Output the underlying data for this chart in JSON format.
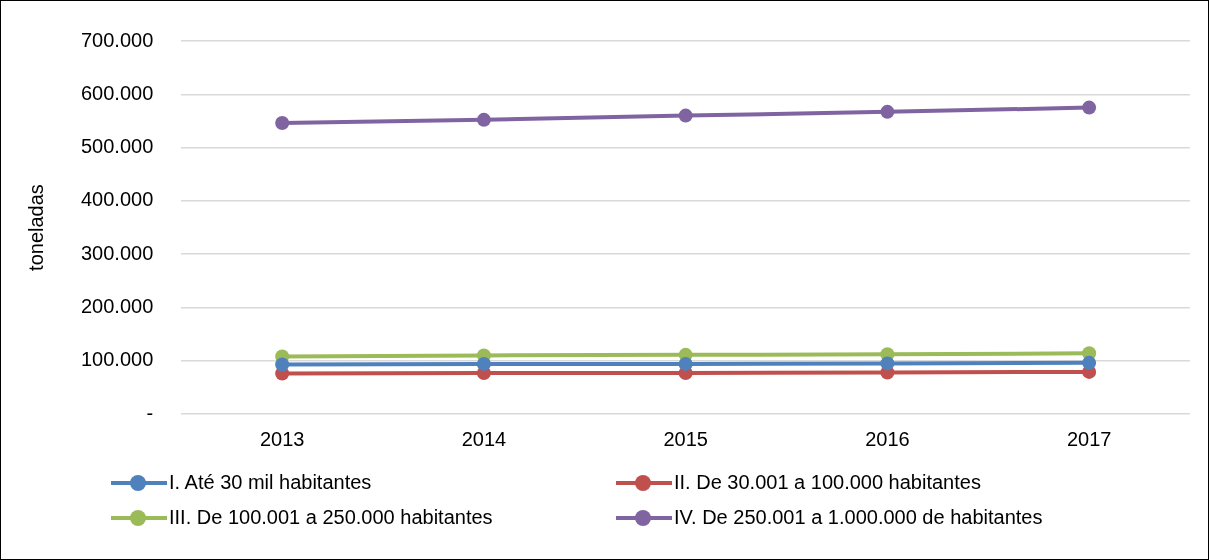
{
  "chart_data": {
    "type": "line",
    "ylabel": "toneladas",
    "categories": [
      "2013",
      "2014",
      "2015",
      "2016",
      "2017"
    ],
    "series": [
      {
        "name": "I. Até 30 mil habitantes",
        "color": "#4f81bd",
        "values": [
          93000,
          94000,
          94000,
          95000,
          96000
        ]
      },
      {
        "name": "II. De 30.001 a 100.000 habitantes",
        "color": "#c0504d",
        "values": [
          76000,
          77000,
          77000,
          78000,
          79000
        ]
      },
      {
        "name": "III. De 100.001 a 250.000 habitantes",
        "color": "#9bbb59",
        "values": [
          108000,
          110000,
          111000,
          112000,
          114000
        ]
      },
      {
        "name": "IV. De 250.001 a 1.000.000 de habitantes",
        "color": "#8064a2",
        "values": [
          546000,
          552000,
          560000,
          567000,
          575000
        ]
      }
    ],
    "ylim": [
      0,
      700000
    ],
    "yticks": [
      {
        "value": 0,
        "label": "-"
      },
      {
        "value": 100000,
        "label": "100.000"
      },
      {
        "value": 200000,
        "label": "200.000"
      },
      {
        "value": 300000,
        "label": "300.000"
      },
      {
        "value": 400000,
        "label": "400.000"
      },
      {
        "value": 500000,
        "label": "500.000"
      },
      {
        "value": 600000,
        "label": "600.000"
      },
      {
        "value": 700000,
        "label": "700.000"
      }
    ],
    "grid": "y",
    "legend": "bottom",
    "marker": "circle",
    "line_style": "solid"
  }
}
